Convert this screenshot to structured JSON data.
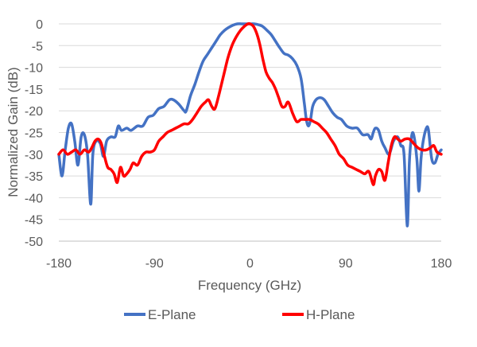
{
  "chart_data": {
    "type": "line",
    "title": "",
    "xlabel": "Frequency (GHz)",
    "ylabel": "Normalized Gain (dB)",
    "xlim": [
      -180,
      180
    ],
    "ylim": [
      -50,
      0
    ],
    "xticks": [
      -180,
      -90,
      0,
      90,
      180
    ],
    "yticks": [
      0,
      -5,
      -10,
      -15,
      -20,
      -25,
      -30,
      -35,
      -40,
      -45,
      -50
    ],
    "grid": "horizontal",
    "legend_position": "bottom",
    "series": [
      {
        "name": "E-Plane",
        "color": "#4472C4",
        "points": [
          [
            -180,
            -30
          ],
          [
            -177,
            -35
          ],
          [
            -174,
            -29
          ],
          [
            -171,
            -24
          ],
          [
            -168,
            -23
          ],
          [
            -165,
            -27
          ],
          [
            -162,
            -32.5
          ],
          [
            -159,
            -26
          ],
          [
            -156,
            -25.5
          ],
          [
            -153,
            -30
          ],
          [
            -150,
            -41.5
          ],
          [
            -148,
            -30
          ],
          [
            -145,
            -27
          ],
          [
            -141,
            -27.5
          ],
          [
            -138,
            -30.5
          ],
          [
            -135,
            -27
          ],
          [
            -131,
            -26
          ],
          [
            -127,
            -26
          ],
          [
            -124,
            -23.5
          ],
          [
            -121,
            -24.5
          ],
          [
            -116,
            -24
          ],
          [
            -112,
            -24.5
          ],
          [
            -106,
            -23.5
          ],
          [
            -101,
            -23.5
          ],
          [
            -96,
            -21.5
          ],
          [
            -91,
            -21
          ],
          [
            -86,
            -19.5
          ],
          [
            -81,
            -19
          ],
          [
            -76,
            -17.5
          ],
          [
            -72,
            -17.5
          ],
          [
            -67,
            -18.5
          ],
          [
            -62,
            -20
          ],
          [
            -60,
            -20
          ],
          [
            -56,
            -16.5
          ],
          [
            -52,
            -14
          ],
          [
            -48,
            -11
          ],
          [
            -44,
            -8.5
          ],
          [
            -40,
            -7
          ],
          [
            -36,
            -5.5
          ],
          [
            -32,
            -4
          ],
          [
            -28,
            -2.5
          ],
          [
            -24,
            -1.5
          ],
          [
            -20,
            -0.8
          ],
          [
            -16,
            -0.3
          ],
          [
            -12,
            0
          ],
          [
            -8,
            0
          ],
          [
            -4,
            0
          ],
          [
            0,
            0
          ],
          [
            4,
            0
          ],
          [
            8,
            -0.2
          ],
          [
            12,
            -0.6
          ],
          [
            16,
            -1.5
          ],
          [
            20,
            -2.5
          ],
          [
            24,
            -4
          ],
          [
            28,
            -5.5
          ],
          [
            32,
            -6.8
          ],
          [
            36,
            -7.2
          ],
          [
            40,
            -8
          ],
          [
            44,
            -9.5
          ],
          [
            48,
            -12.5
          ],
          [
            51,
            -18
          ],
          [
            53,
            -22
          ],
          [
            55,
            -23.5
          ],
          [
            57,
            -22
          ],
          [
            59,
            -19
          ],
          [
            62,
            -17.5
          ],
          [
            66,
            -17
          ],
          [
            70,
            -17.5
          ],
          [
            74,
            -19
          ],
          [
            78,
            -20.5
          ],
          [
            82,
            -21.5
          ],
          [
            86,
            -22
          ],
          [
            91,
            -23.5
          ],
          [
            96,
            -24
          ],
          [
            101,
            -24
          ],
          [
            106,
            -25.5
          ],
          [
            111,
            -25.5
          ],
          [
            114,
            -26.5
          ],
          [
            116,
            -25
          ],
          [
            118,
            -24
          ],
          [
            121,
            -24.5
          ],
          [
            124,
            -27
          ],
          [
            127,
            -28.5
          ],
          [
            131,
            -30
          ],
          [
            135,
            -27
          ],
          [
            139,
            -26
          ],
          [
            142,
            -28
          ],
          [
            145,
            -30
          ],
          [
            148,
            -46.5
          ],
          [
            150,
            -32
          ],
          [
            152,
            -26
          ],
          [
            154,
            -25.5
          ],
          [
            157,
            -31
          ],
          [
            159,
            -38.5
          ],
          [
            161,
            -31
          ],
          [
            163,
            -27
          ],
          [
            166,
            -24
          ],
          [
            168,
            -24.5
          ],
          [
            171,
            -31
          ],
          [
            174,
            -32
          ],
          [
            177,
            -30
          ],
          [
            180,
            -29
          ]
        ]
      },
      {
        "name": "H-Plane",
        "color": "#FF0000",
        "points": [
          [
            -180,
            -30
          ],
          [
            -176,
            -29
          ],
          [
            -172,
            -30
          ],
          [
            -168,
            -29.5
          ],
          [
            -164,
            -29
          ],
          [
            -160,
            -30
          ],
          [
            -156,
            -29
          ],
          [
            -152,
            -29.5
          ],
          [
            -149,
            -28.5
          ],
          [
            -146,
            -27
          ],
          [
            -143,
            -26.5
          ],
          [
            -140,
            -27.5
          ],
          [
            -137,
            -30.5
          ],
          [
            -134,
            -33
          ],
          [
            -131,
            -33.5
          ],
          [
            -128,
            -34.5
          ],
          [
            -125,
            -36.5
          ],
          [
            -122,
            -33
          ],
          [
            -119,
            -35
          ],
          [
            -116,
            -34.5
          ],
          [
            -113,
            -33.5
          ],
          [
            -110,
            -32
          ],
          [
            -106,
            -32.5
          ],
          [
            -102,
            -30.5
          ],
          [
            -98,
            -29.5
          ],
          [
            -94,
            -29.5
          ],
          [
            -90,
            -29
          ],
          [
            -86,
            -27
          ],
          [
            -82,
            -26
          ],
          [
            -78,
            -25
          ],
          [
            -74,
            -24.5
          ],
          [
            -70,
            -24
          ],
          [
            -66,
            -23.5
          ],
          [
            -62,
            -23
          ],
          [
            -58,
            -23
          ],
          [
            -54,
            -22
          ],
          [
            -50,
            -20.5
          ],
          [
            -46,
            -19
          ],
          [
            -42,
            -18
          ],
          [
            -39,
            -17.5
          ],
          [
            -36,
            -19
          ],
          [
            -33,
            -19.5
          ],
          [
            -29,
            -16
          ],
          [
            -25,
            -12
          ],
          [
            -21,
            -8
          ],
          [
            -17,
            -5
          ],
          [
            -13,
            -3
          ],
          [
            -9,
            -1.5
          ],
          [
            -5,
            -0.5
          ],
          [
            -2,
            0
          ],
          [
            0,
            0
          ],
          [
            3,
            -0.5
          ],
          [
            6,
            -2
          ],
          [
            9,
            -4.5
          ],
          [
            12,
            -8
          ],
          [
            15,
            -11
          ],
          [
            18,
            -12.5
          ],
          [
            21,
            -13.5
          ],
          [
            24,
            -15
          ],
          [
            27,
            -17
          ],
          [
            30,
            -19
          ],
          [
            33,
            -19
          ],
          [
            36,
            -18
          ],
          [
            40,
            -20.5
          ],
          [
            44,
            -22.5
          ],
          [
            48,
            -22
          ],
          [
            52,
            -22
          ],
          [
            56,
            -22
          ],
          [
            60,
            -22.5
          ],
          [
            64,
            -23
          ],
          [
            68,
            -24
          ],
          [
            72,
            -25
          ],
          [
            76,
            -26.5
          ],
          [
            80,
            -28
          ],
          [
            84,
            -30
          ],
          [
            88,
            -31
          ],
          [
            92,
            -32.5
          ],
          [
            96,
            -33
          ],
          [
            100,
            -33.5
          ],
          [
            104,
            -34
          ],
          [
            108,
            -34.5
          ],
          [
            112,
            -34
          ],
          [
            116,
            -37
          ],
          [
            118,
            -35
          ],
          [
            121,
            -33.5
          ],
          [
            124,
            -34
          ],
          [
            127,
            -36
          ],
          [
            130,
            -32
          ],
          [
            133,
            -28
          ],
          [
            136,
            -26
          ],
          [
            139,
            -26.5
          ],
          [
            142,
            -27
          ],
          [
            146,
            -26.5
          ],
          [
            150,
            -26.5
          ],
          [
            154,
            -27.5
          ],
          [
            158,
            -28.5
          ],
          [
            162,
            -29
          ],
          [
            166,
            -29
          ],
          [
            170,
            -28.5
          ],
          [
            173,
            -28
          ],
          [
            176,
            -29.5
          ],
          [
            180,
            -30
          ]
        ]
      }
    ]
  }
}
